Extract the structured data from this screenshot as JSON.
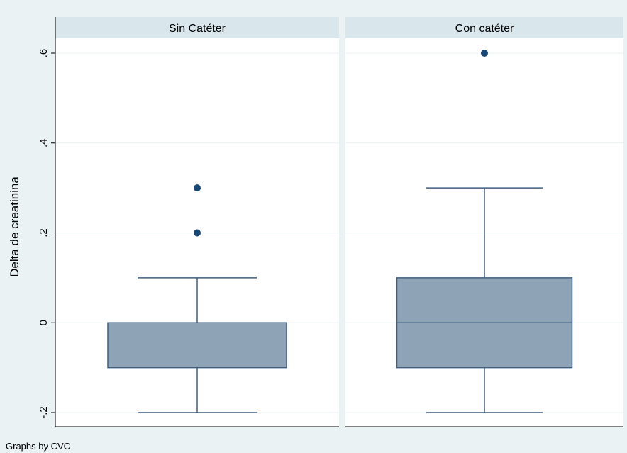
{
  "chart_data": {
    "type": "box",
    "ylabel": "Delta de creatinina",
    "ylim": [
      -0.2,
      0.6
    ],
    "yticks": [
      -0.2,
      0,
      0.2,
      0.4,
      0.6
    ],
    "ytick_labels": [
      "-.2",
      "0",
      ".2",
      ".4",
      ".6"
    ],
    "grid": true,
    "note": "Graphs by CVC",
    "panels": [
      {
        "title": "Sin Catéter",
        "box": {
          "whisker_low": -0.2,
          "q1": -0.1,
          "median": 0,
          "q3": 0,
          "whisker_high": 0.1
        },
        "outliers": [
          0.2,
          0.3
        ]
      },
      {
        "title": "Con catéter",
        "box": {
          "whisker_low": -0.2,
          "q1": -0.1,
          "median": 0,
          "q3": 0.1,
          "whisker_high": 0.3
        },
        "outliers": [
          0.6
        ]
      }
    ],
    "colors": {
      "page_background": "#eaf2f3",
      "plot_background": "#ffffff",
      "strip_background": "#d9e6ec",
      "box_fill": "#8fa3b6",
      "box_line": "#3f5e80",
      "marker": "#1a4876",
      "grid": "#eaf2f3"
    }
  }
}
